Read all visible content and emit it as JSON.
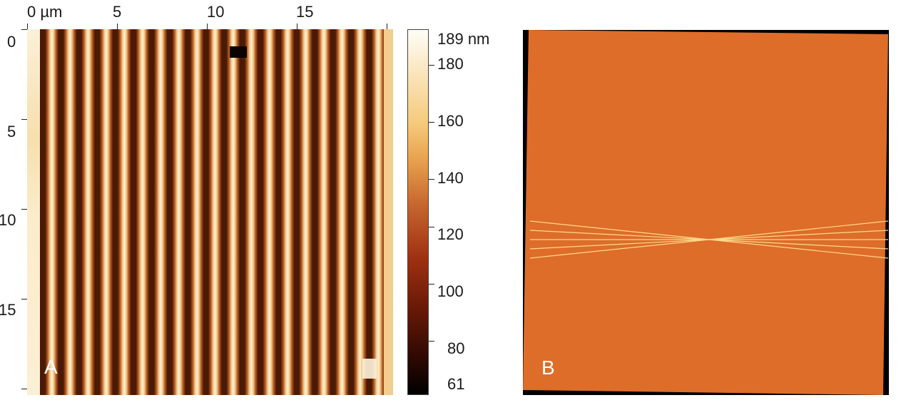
{
  "panel_a": {
    "label": "A",
    "x_axis": {
      "unit_label": "0 µm",
      "ticks": [
        "5",
        "10",
        "15"
      ]
    },
    "y_axis": {
      "ticks": [
        "0",
        "5",
        "10",
        "15"
      ]
    },
    "stripe_count": 19,
    "colormap": "afm-copper"
  },
  "colorbar": {
    "top_label": "189 nm",
    "ticks": [
      "180",
      "160",
      "140",
      "120",
      "100",
      "80"
    ],
    "bottom_label": "61",
    "range_nm": [
      61,
      189
    ]
  },
  "panel_b": {
    "label": "B",
    "background_color": "#dd6d29",
    "line_color": "#ffd98a"
  }
}
